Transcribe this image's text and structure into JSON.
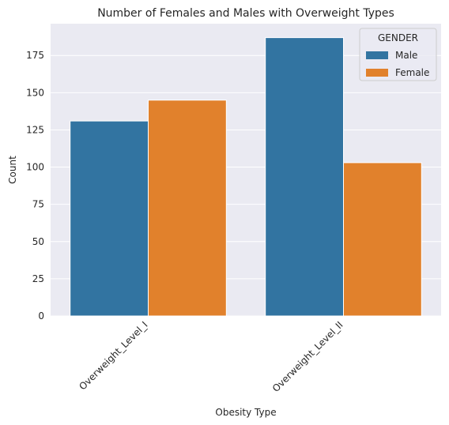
{
  "chart_data": {
    "type": "bar",
    "title": "Number of Females and Males with Overweight Types",
    "xlabel": "Obesity Type",
    "ylabel": "Count",
    "categories": [
      "Overweight_Level_I",
      "Overweight_Level_II"
    ],
    "series": [
      {
        "name": "Male",
        "values": [
          131,
          187
        ],
        "color": "#3274a1"
      },
      {
        "name": "Female",
        "values": [
          145,
          103
        ],
        "color": "#e1812c"
      }
    ],
    "yticks": [
      0,
      25,
      50,
      75,
      100,
      125,
      150,
      175
    ],
    "ylim": [
      0,
      196.35
    ],
    "grid": true,
    "legend": {
      "title": "GENDER",
      "placement": "top-right"
    },
    "background": "#eaeaf2"
  }
}
